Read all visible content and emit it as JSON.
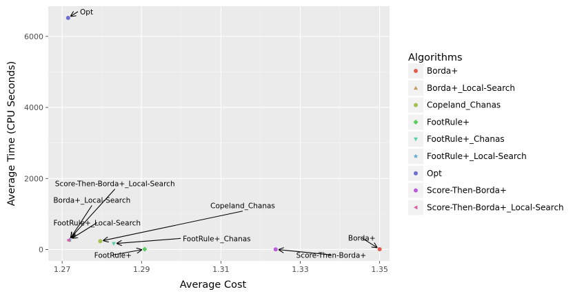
{
  "chart_data": {
    "type": "scatter",
    "xlabel": "Average Cost",
    "ylabel": "Average Time (CPU Seconds)",
    "x_ticks": [
      1.27,
      1.29,
      1.31,
      1.33,
      1.35
    ],
    "y_ticks": [
      0,
      2000,
      4000,
      6000
    ],
    "xlim": [
      1.2665,
      1.3525
    ],
    "ylim": [
      -320,
      6850
    ],
    "grid": true,
    "legend": {
      "title": "Algorithms",
      "placement": "right",
      "entries": [
        "Borda+",
        "Borda+_Local-Search",
        "Copeland_Chanas",
        "FootRule+",
        "FootRule+_Chanas",
        "FootRule+_Local-Search",
        "Opt",
        "Score-Then-Borda+",
        "Score-Then-Borda+_Local-Search"
      ]
    },
    "series": [
      {
        "name": "Borda+",
        "color": "#e15d51",
        "shape": "circle",
        "x": 1.35,
        "y": 10
      },
      {
        "name": "Borda+_Local-Search",
        "color": "#c29b5a",
        "shape": "triangle-up",
        "x": 1.2718,
        "y": 270
      },
      {
        "name": "Copeland_Chanas",
        "color": "#a4c050",
        "shape": "circle",
        "x": 1.2796,
        "y": 235
      },
      {
        "name": "FootRule+",
        "color": "#5bcc60",
        "shape": "diamond",
        "x": 1.2908,
        "y": 10
      },
      {
        "name": "FootRule+_Chanas",
        "color": "#56d0a2",
        "shape": "triangle-down",
        "x": 1.283,
        "y": 165
      },
      {
        "name": "FootRule+_Local-Search",
        "color": "#5da8d7",
        "shape": "star",
        "x": 1.2719,
        "y": 275
      },
      {
        "name": "Opt",
        "color": "#6b6fcd",
        "shape": "circle",
        "x": 1.2715,
        "y": 6520
      },
      {
        "name": "Score-Then-Borda+",
        "color": "#bb5ed9",
        "shape": "circle",
        "x": 1.3238,
        "y": 5
      },
      {
        "name": "Score-Then-Borda+_Local-Search",
        "color": "#d85ea8",
        "shape": "triangle-left",
        "x": 1.2716,
        "y": 265
      }
    ],
    "annotations": [
      {
        "text": "Opt",
        "series": "Opt",
        "tx": 1.2745,
        "ty": 6620,
        "anchor": "start"
      },
      {
        "text": "Score-Then-Borda+_Local-Search",
        "series": "Score-Then-Borda+_Local-Search",
        "tx": 1.2833,
        "ty": 1780,
        "anchor": "middle"
      },
      {
        "text": "Borda+_Local-Search",
        "series": "Borda+_Local-Search",
        "tx": 1.2775,
        "ty": 1320,
        "anchor": "middle"
      },
      {
        "text": "Copeland_Chanas",
        "series": "Copeland_Chanas",
        "tx": 1.3155,
        "ty": 1160,
        "anchor": "middle"
      },
      {
        "text": "FootRule+_Local-Search",
        "series": "FootRule+_Local-Search",
        "tx": 1.2788,
        "ty": 680,
        "anchor": "middle"
      },
      {
        "text": "FootRule+_Chanas",
        "series": "FootRule+_Chanas",
        "tx": 1.3004,
        "ty": 235,
        "anchor": "start"
      },
      {
        "text": "FootRule+",
        "series": "FootRule+",
        "tx": 1.2828,
        "ty": -230,
        "anchor": "middle"
      },
      {
        "text": "Score-Then-Borda+",
        "series": "Score-Then-Borda+",
        "tx": 1.3378,
        "ty": -230,
        "anchor": "middle"
      },
      {
        "text": "Borda+",
        "series": "Borda+",
        "tx": 1.3455,
        "ty": 250,
        "anchor": "middle"
      }
    ]
  }
}
